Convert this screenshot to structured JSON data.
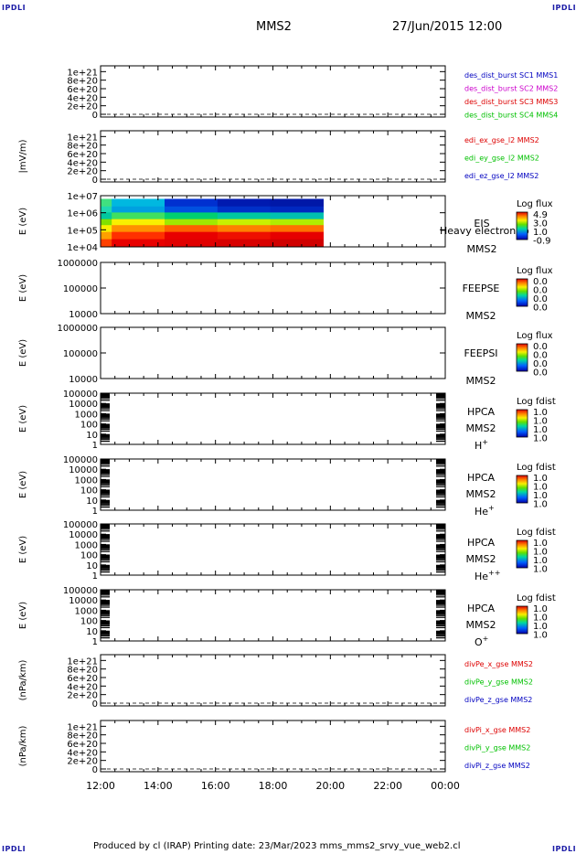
{
  "corner_label": "IPDLI",
  "header": {
    "mission": "MMS2",
    "date": "27/Jun/2015 12:00"
  },
  "footer": {
    "text": "Produced by cl (IRAP)   Printing date: 23/Mar/2023   mms_mms2_srvy_vue_web2.cl"
  },
  "colors": {
    "mms1": "#0000c0",
    "mms2": "#cc00cc",
    "mms3": "#dd0000",
    "mms4": "#00c000",
    "red": "#dd0000",
    "green": "#00c000",
    "blue": "#0000c0"
  },
  "chart_data": {
    "type": "stacked-timeseries",
    "time_axis": {
      "start": "12:00",
      "end": "00:00",
      "span_hours": 12,
      "ticks": [
        "12:00",
        "14:00",
        "16:00",
        "18:00",
        "20:00",
        "22:00",
        "00:00"
      ]
    },
    "panels": [
      {
        "id": "des",
        "type": "line",
        "ylabel": "",
        "scale": "linear",
        "ylim": [
          0,
          1.2e+21
        ],
        "ticks": [
          {
            "v": 0,
            "label": "0"
          },
          {
            "v": 2e+20,
            "label": "2e+20"
          },
          {
            "v": 4e+20,
            "label": "4e+20"
          },
          {
            "v": 6e+20,
            "label": "6e+20"
          },
          {
            "v": 8e+20,
            "label": "8e+20"
          },
          {
            "v": 1e+21,
            "label": "1e+21"
          }
        ],
        "zero_line": true,
        "legend": [
          {
            "text": "des_dist_burst SC1 MMS1",
            "color": "#0000c0"
          },
          {
            "text": "des_dist_burst SC2 MMS2",
            "color": "#cc00cc"
          },
          {
            "text": "des_dist_burst SC3 MMS3",
            "color": "#dd0000"
          },
          {
            "text": "des_dist_burst SC4 MMS4",
            "color": "#00c000"
          }
        ]
      },
      {
        "id": "edi",
        "type": "line",
        "ylabel": "|mV/m)",
        "scale": "linear",
        "ylim": [
          0,
          1.2e+21
        ],
        "ticks": [
          {
            "v": 0,
            "label": "0"
          },
          {
            "v": 2e+20,
            "label": "2e+20"
          },
          {
            "v": 4e+20,
            "label": "4e+20"
          },
          {
            "v": 6e+20,
            "label": "6e+20"
          },
          {
            "v": 8e+20,
            "label": "8e+20"
          },
          {
            "v": 1e+21,
            "label": "1e+21"
          }
        ],
        "zero_line": true,
        "legend": [
          {
            "text": "edi_ex_gse_l2 MMS2",
            "color": "#dd0000"
          },
          {
            "text": "edi_ey_gse_l2 MMS2",
            "color": "#00c000"
          },
          {
            "text": "edi_ez_gse_l2 MMS2",
            "color": "#0000c0"
          }
        ]
      },
      {
        "id": "eis",
        "type": "heatmap",
        "ylabel": "E (eV)",
        "scale": "log",
        "ylim": [
          10000.0,
          10000000.0
        ],
        "ticks": [
          {
            "v": 10000.0,
            "label": "1e+04"
          },
          {
            "v": 100000.0,
            "label": "1e+05"
          },
          {
            "v": 1000000.0,
            "label": "1e+06"
          },
          {
            "v": 10000000.0,
            "label": "1e+07"
          }
        ],
        "right_labels": [
          "EIS",
          "MMS2"
        ],
        "overlay_text": "Heavy electron to",
        "cbar": {
          "title": "Log flux",
          "values": [
            "4.9",
            "3.0",
            "1.0",
            "-0.9"
          ]
        },
        "data_end": "19:45",
        "bands": [
          {
            "e": [
              30000.0,
              10000.0
            ],
            "c": [
              "#ff4000",
              "#e80000",
              "#e00000",
              "#d80000",
              "#d00000"
            ]
          },
          {
            "e": [
              80000.0,
              30000.0
            ],
            "c": [
              "#ffa000",
              "#ff3000",
              "#e80000",
              "#ee1000",
              "#e60000"
            ]
          },
          {
            "e": [
              200000.0,
              80000.0
            ],
            "c": [
              "#f8f000",
              "#ff9000",
              "#ff6000",
              "#ff8000",
              "#ff7000"
            ]
          },
          {
            "e": [
              450000.0,
              200000.0
            ],
            "c": [
              "#80e000",
              "#f8f000",
              "#a0e800",
              "#c8f000",
              "#b0ec00"
            ]
          },
          {
            "e": [
              1100000.0,
              450000.0
            ],
            "c": [
              "#00c8a0",
              "#40e060",
              "#00d070",
              "#00c8a0",
              "#00c0b0"
            ]
          },
          {
            "e": [
              2500000.0,
              1100000.0
            ],
            "c": [
              "#20d8b0",
              "#00a0e0",
              "#0050e0",
              "#0030c8",
              "#0028c0"
            ]
          },
          {
            "e": [
              6500000.0,
              2500000.0
            ],
            "c": [
              "#40e080",
              "#00b8e0",
              "#0030d0",
              "#001ab0",
              "#0018a8"
            ]
          }
        ]
      },
      {
        "id": "feepse",
        "type": "heatmap-empty",
        "ylabel": "E (eV)",
        "scale": "log",
        "ylim": [
          10000,
          1000000
        ],
        "ticks": [
          {
            "v": 10000,
            "label": "10000"
          },
          {
            "v": 100000,
            "label": "100000"
          },
          {
            "v": 1000000,
            "label": "1000000"
          }
        ],
        "right_labels": [
          "FEEPSE",
          "MMS2"
        ],
        "cbar": {
          "title": "Log flux",
          "values": [
            "0.0",
            "0.0",
            "0.0",
            "0.0"
          ]
        }
      },
      {
        "id": "feepsi",
        "type": "heatmap-empty",
        "ylabel": "E (eV)",
        "scale": "log",
        "ylim": [
          10000,
          1000000
        ],
        "ticks": [
          {
            "v": 10000,
            "label": "10000"
          },
          {
            "v": 100000,
            "label": "100000"
          },
          {
            "v": 1000000,
            "label": "1000000"
          }
        ],
        "right_labels": [
          "FEEPSI",
          "MMS2"
        ],
        "cbar": {
          "title": "Log flux",
          "values": [
            "0.0",
            "0.0",
            "0.0",
            "0.0"
          ]
        }
      },
      {
        "id": "hpca-h",
        "type": "heatmap-empty",
        "ylabel": "E (eV)",
        "scale": "log",
        "ylim": [
          1,
          100000
        ],
        "ticks": [
          {
            "v": 1,
            "label": "1"
          },
          {
            "v": 10,
            "label": "10"
          },
          {
            "v": 100,
            "label": "100"
          },
          {
            "v": 1000,
            "label": "1000"
          },
          {
            "v": 10000,
            "label": "10000"
          },
          {
            "v": 100000,
            "label": "100000"
          }
        ],
        "right_labels": [
          "HPCA",
          "MMS2"
        ],
        "species": {
          "base": "H",
          "sup": "+"
        },
        "cbar": {
          "title": "Log fdist",
          "values": [
            "1.0",
            "1.0",
            "1.0",
            "1.0"
          ]
        }
      },
      {
        "id": "hpca-he",
        "type": "heatmap-empty",
        "ylabel": "E (eV)",
        "scale": "log",
        "ylim": [
          1,
          100000
        ],
        "ticks": [
          {
            "v": 1,
            "label": "1"
          },
          {
            "v": 10,
            "label": "10"
          },
          {
            "v": 100,
            "label": "100"
          },
          {
            "v": 1000,
            "label": "1000"
          },
          {
            "v": 10000,
            "label": "10000"
          },
          {
            "v": 100000,
            "label": "100000"
          }
        ],
        "right_labels": [
          "HPCA",
          "MMS2"
        ],
        "species": {
          "base": "He",
          "sup": "+"
        },
        "cbar": {
          "title": "Log fdist",
          "values": [
            "1.0",
            "1.0",
            "1.0",
            "1.0"
          ]
        }
      },
      {
        "id": "hpca-he2",
        "type": "heatmap-empty",
        "ylabel": "E (eV)",
        "scale": "log",
        "ylim": [
          1,
          100000
        ],
        "ticks": [
          {
            "v": 1,
            "label": "1"
          },
          {
            "v": 10,
            "label": "10"
          },
          {
            "v": 100,
            "label": "100"
          },
          {
            "v": 1000,
            "label": "1000"
          },
          {
            "v": 10000,
            "label": "10000"
          },
          {
            "v": 100000,
            "label": "100000"
          }
        ],
        "right_labels": [
          "HPCA",
          "MMS2"
        ],
        "species": {
          "base": "He",
          "sup": "++"
        },
        "cbar": {
          "title": "Log fdist",
          "values": [
            "1.0",
            "1.0",
            "1.0",
            "1.0"
          ]
        }
      },
      {
        "id": "hpca-o",
        "type": "heatmap-empty",
        "ylabel": "E (eV)",
        "scale": "log",
        "ylim": [
          1,
          100000
        ],
        "ticks": [
          {
            "v": 1,
            "label": "1"
          },
          {
            "v": 10,
            "label": "10"
          },
          {
            "v": 100,
            "label": "100"
          },
          {
            "v": 1000,
            "label": "1000"
          },
          {
            "v": 10000,
            "label": "10000"
          },
          {
            "v": 100000,
            "label": "100000"
          }
        ],
        "right_labels": [
          "HPCA",
          "MMS2"
        ],
        "species": {
          "base": "O",
          "sup": "+"
        },
        "cbar": {
          "title": "Log fdist",
          "values": [
            "1.0",
            "1.0",
            "1.0",
            "1.0"
          ]
        }
      },
      {
        "id": "divpe",
        "type": "line",
        "ylabel": "(nPa/km)",
        "scale": "linear",
        "ylim": [
          0,
          1.2e+21
        ],
        "ticks": [
          {
            "v": 0,
            "label": "0"
          },
          {
            "v": 2e+20,
            "label": "2e+20"
          },
          {
            "v": 4e+20,
            "label": "4e+20"
          },
          {
            "v": 6e+20,
            "label": "6e+20"
          },
          {
            "v": 8e+20,
            "label": "8e+20"
          },
          {
            "v": 1e+21,
            "label": "1e+21"
          }
        ],
        "zero_line": true,
        "legend": [
          {
            "text": "divPe_x_gse MMS2",
            "color": "#dd0000"
          },
          {
            "text": "divPe_y_gse MMS2",
            "color": "#00c000"
          },
          {
            "text": "divPe_z_gse MMS2",
            "color": "#0000c0"
          }
        ]
      },
      {
        "id": "divpi",
        "type": "line",
        "ylabel": "(nPa/km)",
        "scale": "linear",
        "ylim": [
          0,
          1.2e+21
        ],
        "ticks": [
          {
            "v": 0,
            "label": "0"
          },
          {
            "v": 2e+20,
            "label": "2e+20"
          },
          {
            "v": 4e+20,
            "label": "4e+20"
          },
          {
            "v": 6e+20,
            "label": "6e+20"
          },
          {
            "v": 8e+20,
            "label": "8e+20"
          },
          {
            "v": 1e+21,
            "label": "1e+21"
          }
        ],
        "zero_line": true,
        "legend": [
          {
            "text": "divPi_x_gse MMS2",
            "color": "#dd0000"
          },
          {
            "text": "divPi_y_gse MMS2",
            "color": "#00c000"
          },
          {
            "text": "divPi_z_gse MMS2",
            "color": "#0000c0"
          }
        ]
      }
    ]
  }
}
